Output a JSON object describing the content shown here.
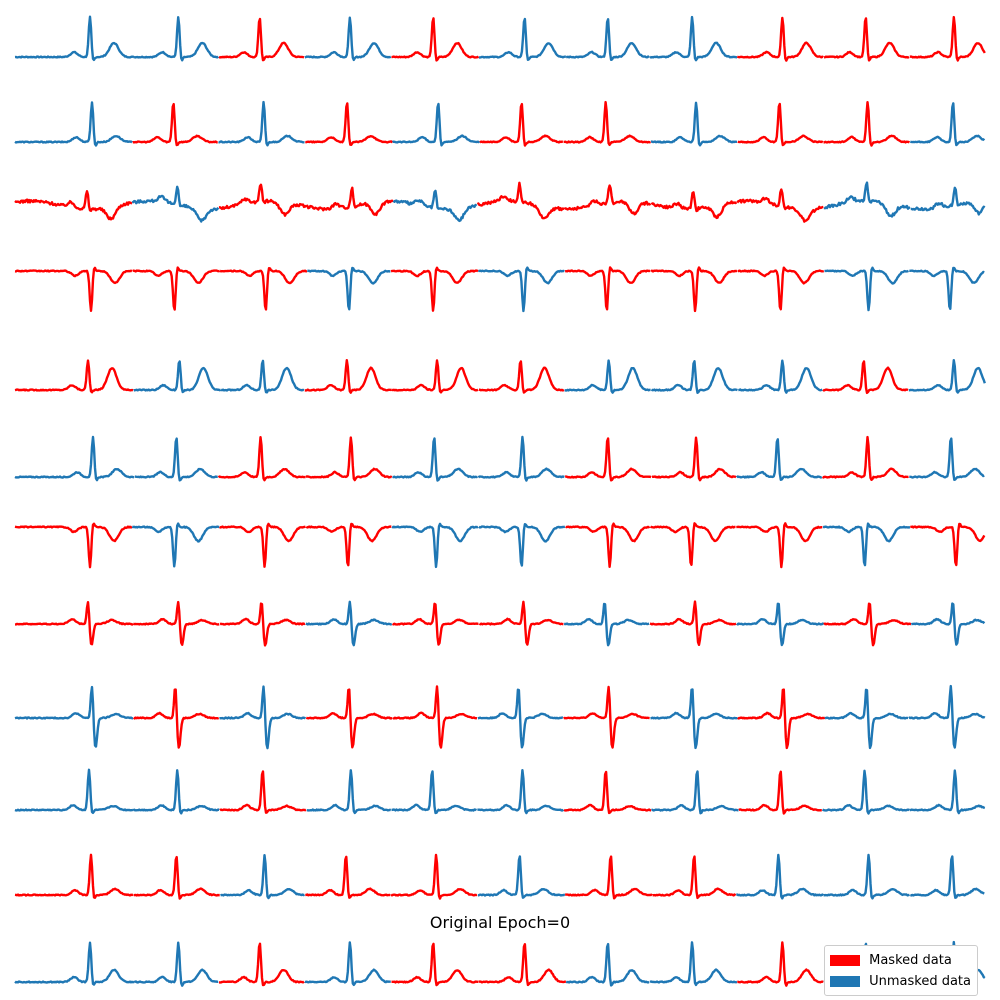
{
  "legend": {
    "masked_label": "Masked data",
    "unmasked_label": "Unmasked data"
  },
  "colors": {
    "masked": "#ff0000",
    "unmasked": "#1f77b4"
  },
  "chart_data": {
    "type": "line",
    "title": "Original Epoch=0",
    "xlabel": "",
    "ylabel": "",
    "axes_visible": false,
    "grid": false,
    "legend_position": "bottom-right",
    "beats_per_lead": 11,
    "series": [
      {
        "name": "Masked data",
        "color": "#ff0000"
      },
      {
        "name": "Unmasked data",
        "color": "#1f77b4"
      }
    ],
    "leads": [
      {
        "index": 1,
        "morphology": "upright",
        "r_amplitude": 1.0,
        "t_amplitude": 0.35,
        "masked_beats": [
          3,
          5,
          9,
          10,
          11
        ]
      },
      {
        "index": 2,
        "morphology": "upright",
        "r_amplitude": 1.0,
        "t_amplitude": 0.15,
        "masked_beats": [
          2,
          4,
          6,
          7,
          9,
          10
        ]
      },
      {
        "index": 3,
        "morphology": "noisy",
        "r_amplitude": 0.45,
        "t_amplitude": -0.3,
        "masked_beats": [
          1,
          3,
          4,
          6,
          7,
          8,
          9
        ]
      },
      {
        "index": 4,
        "morphology": "inverted",
        "r_amplitude": -1.0,
        "t_amplitude": -0.3,
        "masked_beats": [
          1,
          2,
          3,
          5,
          7,
          8,
          9
        ]
      },
      {
        "index": 5,
        "morphology": "upright",
        "r_amplitude": 0.75,
        "t_amplitude": 0.55,
        "masked_beats": [
          1,
          4,
          5,
          6,
          10
        ]
      },
      {
        "index": 6,
        "morphology": "upright",
        "r_amplitude": 1.0,
        "t_amplitude": 0.2,
        "masked_beats": [
          3,
          4,
          7,
          8,
          10
        ]
      },
      {
        "index": 7,
        "morphology": "inverted",
        "r_amplitude": -1.0,
        "t_amplitude": -0.35,
        "masked_beats": [
          1,
          3,
          4,
          7,
          8,
          9,
          11
        ]
      },
      {
        "index": 8,
        "morphology": "biphasic",
        "r_amplitude": 0.6,
        "t_amplitude": 0.1,
        "masked_beats": [
          1,
          2,
          3,
          5,
          6,
          8,
          10
        ]
      },
      {
        "index": 9,
        "morphology": "biphasic",
        "r_amplitude": 0.85,
        "t_amplitude": 0.1,
        "masked_beats": [
          2,
          4,
          5,
          7,
          9
        ]
      },
      {
        "index": 10,
        "morphology": "upright",
        "r_amplitude": 1.0,
        "t_amplitude": 0.1,
        "masked_beats": [
          3,
          7,
          9
        ]
      },
      {
        "index": 11,
        "morphology": "upright",
        "r_amplitude": 1.0,
        "t_amplitude": 0.15,
        "masked_beats": [
          1,
          2,
          4,
          5,
          7,
          8
        ]
      },
      {
        "index": 12,
        "morphology": "upright",
        "r_amplitude": 1.0,
        "t_amplitude": 0.3,
        "masked_beats": [
          3,
          5,
          6,
          9
        ]
      }
    ]
  }
}
